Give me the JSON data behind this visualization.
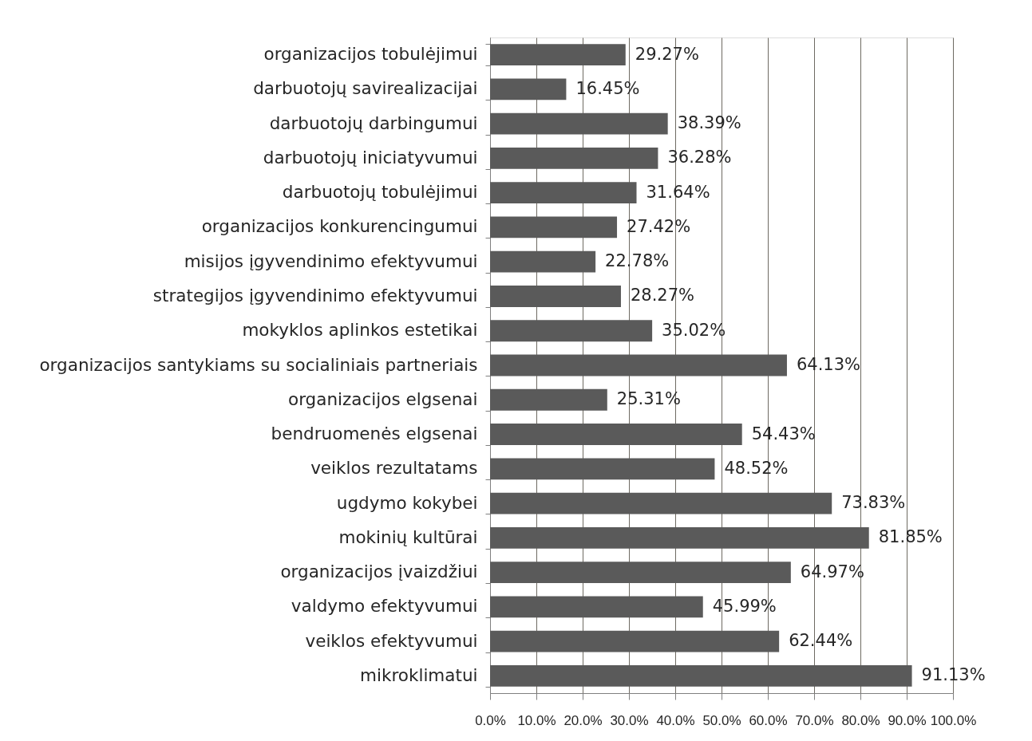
{
  "chart_data": {
    "type": "bar",
    "orientation": "horizontal",
    "categories": [
      "organizacijos tobulėjimui",
      "darbuotojų savirealizacijai",
      "darbuotojų darbingumui",
      "darbuotojų iniciatyvumui",
      "darbuotojų tobulėjimui",
      "organizacijos konkurencingumui",
      "misijos įgyvendinimo efektyvumui",
      "strategijos įgyvendinimo efektyvumui",
      "mokyklos aplinkos estetikai",
      "organizacijos santykiams su socialiniais partneriais",
      "organizacijos elgsenai",
      "bendruomenės elgsenai",
      "veiklos rezultatams",
      "ugdymo kokybei",
      "mokinių kultūrai",
      "organizacijos įvaizdžiui",
      "valdymo efektyvumui",
      "veiklos efektyvumui",
      "mikroklimatui"
    ],
    "values": [
      29.27,
      16.45,
      38.39,
      36.28,
      31.64,
      27.42,
      22.78,
      28.27,
      35.02,
      64.13,
      25.31,
      54.43,
      48.52,
      73.83,
      81.85,
      64.97,
      45.99,
      62.44,
      91.13
    ],
    "value_labels": [
      "29.27%",
      "16.45%",
      "38.39%",
      "36.28%",
      "31.64%",
      "27.42%",
      "22.78%",
      "28.27%",
      "35.02%",
      "64.13%",
      "25.31%",
      "54.43%",
      "48.52%",
      "73.83%",
      "81.85%",
      "64.97%",
      "45.99%",
      "62.44%",
      "91.13%"
    ],
    "color": "#5a5a5a",
    "xlim": [
      0,
      100
    ],
    "xticks": [
      {
        "value": 0,
        "label": "0.0%"
      },
      {
        "value": 10,
        "label": "10.0%"
      },
      {
        "value": 20,
        "label": "20.0%"
      },
      {
        "value": 30,
        "label": "30.0%"
      },
      {
        "value": 40,
        "label": "40.0%"
      },
      {
        "value": 50,
        "label": "50.0%"
      },
      {
        "value": 60,
        "label": "60.0%"
      },
      {
        "value": 70,
        "label": "70.0%"
      },
      {
        "value": 80,
        "label": "80.0%"
      },
      {
        "value": 90,
        "label": "90.0%"
      },
      {
        "value": 100,
        "label": "100.0%"
      }
    ],
    "grid": "x"
  }
}
